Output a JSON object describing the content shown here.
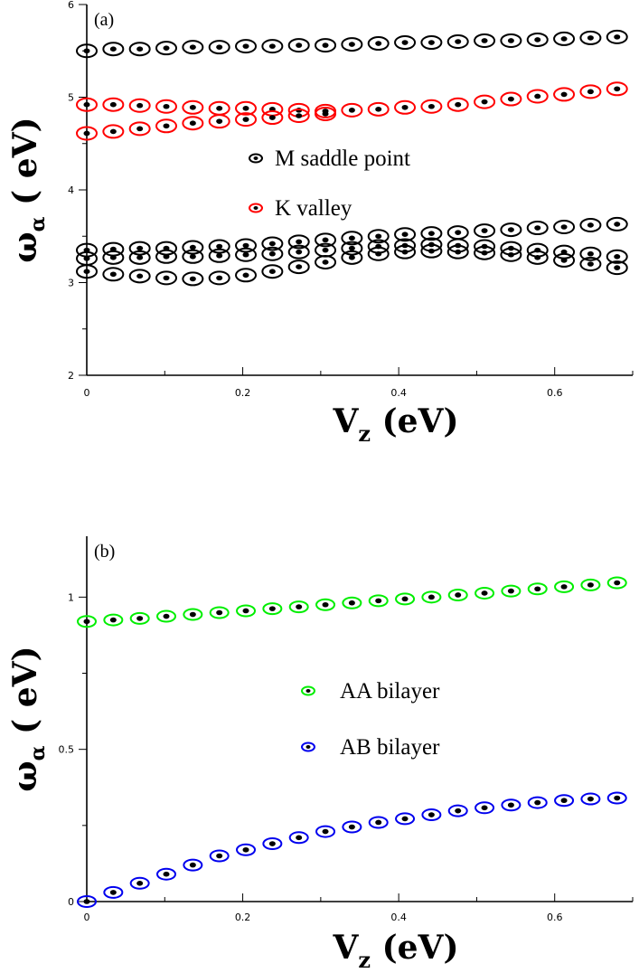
{
  "chart_data": [
    {
      "type": "scatter",
      "panel_label": "(a)",
      "xlabel_main": "V",
      "xlabel_sub": "z",
      "xlabel_unit": " (eV)",
      "ylabel_main": "ω",
      "ylabel_sub": "α",
      "ylabel_unit": " ( eV)",
      "xlim": [
        0,
        0.7
      ],
      "ylim": [
        2,
        6
      ],
      "x_ticks": [
        0,
        0.2,
        0.4,
        0.6
      ],
      "x_tick_labels": [
        "0",
        "0.2",
        "0.4",
        "0.6"
      ],
      "y_ticks": [
        2,
        3,
        4,
        5,
        6
      ],
      "y_tick_labels": [
        "2",
        "3",
        "4",
        "5",
        "6"
      ],
      "legend_placement": "center",
      "series": [
        {
          "name": "M saddle point",
          "color": "#000000",
          "x": [
            0,
            0.034,
            0.068,
            0.102,
            0.136,
            0.17,
            0.204,
            0.238,
            0.272,
            0.306,
            0.34,
            0.374,
            0.408,
            0.442,
            0.476,
            0.51,
            0.544,
            0.578,
            0.612,
            0.646,
            0.68
          ],
          "y": [
            5.5,
            5.52,
            5.52,
            5.53,
            5.54,
            5.54,
            5.55,
            5.55,
            5.56,
            5.56,
            5.57,
            5.58,
            5.59,
            5.59,
            5.6,
            5.61,
            5.61,
            5.62,
            5.63,
            5.64,
            5.65
          ]
        },
        {
          "name": "M saddle point",
          "color": "#000000",
          "x": [
            0,
            0.034,
            0.068,
            0.102,
            0.136,
            0.17,
            0.204,
            0.238,
            0.272,
            0.306,
            0.34,
            0.374,
            0.408,
            0.442,
            0.476,
            0.51,
            0.544,
            0.578,
            0.612,
            0.646,
            0.68
          ],
          "y": [
            3.35,
            3.36,
            3.37,
            3.37,
            3.38,
            3.39,
            3.4,
            3.42,
            3.44,
            3.46,
            3.48,
            3.5,
            3.52,
            3.53,
            3.54,
            3.56,
            3.57,
            3.59,
            3.6,
            3.62,
            3.63
          ]
        },
        {
          "name": "M saddle point",
          "color": "#000000",
          "x": [
            0,
            0.034,
            0.068,
            0.102,
            0.136,
            0.17,
            0.204,
            0.238,
            0.272,
            0.306,
            0.34,
            0.374,
            0.408,
            0.442,
            0.476,
            0.51,
            0.544,
            0.578,
            0.612,
            0.646,
            0.68
          ],
          "y": [
            3.26,
            3.27,
            3.27,
            3.28,
            3.28,
            3.29,
            3.3,
            3.31,
            3.33,
            3.35,
            3.37,
            3.39,
            3.4,
            3.41,
            3.4,
            3.39,
            3.37,
            3.35,
            3.33,
            3.31,
            3.28
          ]
        },
        {
          "name": "M saddle point",
          "color": "#000000",
          "x": [
            0,
            0.034,
            0.068,
            0.102,
            0.136,
            0.17,
            0.204,
            0.238,
            0.272,
            0.306,
            0.34,
            0.374,
            0.408,
            0.442,
            0.476,
            0.51,
            0.544,
            0.578,
            0.612,
            0.646,
            0.68
          ],
          "y": [
            3.12,
            3.09,
            3.07,
            3.05,
            3.04,
            3.05,
            3.08,
            3.12,
            3.17,
            3.22,
            3.27,
            3.31,
            3.33,
            3.34,
            3.33,
            3.32,
            3.3,
            3.27,
            3.24,
            3.2,
            3.16
          ]
        },
        {
          "name": "K valley",
          "color": "#ff0000",
          "x": [
            0,
            0.034,
            0.068,
            0.102,
            0.136,
            0.17,
            0.204,
            0.238,
            0.272,
            0.306,
            0.34,
            0.374,
            0.408,
            0.442,
            0.476,
            0.51,
            0.544,
            0.578,
            0.612,
            0.646,
            0.68
          ],
          "y": [
            4.92,
            4.92,
            4.91,
            4.9,
            4.89,
            4.88,
            4.88,
            4.87,
            4.86,
            4.85,
            4.86,
            4.87,
            4.89,
            4.9,
            4.92,
            4.95,
            4.98,
            5.01,
            5.03,
            5.06,
            5.09
          ]
        },
        {
          "name": "K valley",
          "color": "#ff0000",
          "x": [
            0,
            0.034,
            0.068,
            0.102,
            0.136,
            0.17,
            0.204,
            0.238,
            0.272,
            0.306
          ],
          "y": [
            4.61,
            4.63,
            4.66,
            4.69,
            4.72,
            4.74,
            4.76,
            4.78,
            4.8,
            4.82
          ]
        }
      ],
      "legend": [
        {
          "label": "M saddle point",
          "color": "#000000"
        },
        {
          "label": "K valley",
          "color": "#ff0000"
        }
      ]
    },
    {
      "type": "scatter",
      "panel_label": "(b)",
      "xlabel_main": "V",
      "xlabel_sub": "z",
      "xlabel_unit": " (eV)",
      "ylabel_main": "ω",
      "ylabel_sub": "α",
      "ylabel_unit": " ( eV)",
      "xlim": [
        0,
        0.7
      ],
      "ylim": [
        0,
        1.2
      ],
      "x_ticks": [
        0,
        0.2,
        0.4,
        0.6
      ],
      "x_tick_labels": [
        "0",
        "0.2",
        "0.4",
        "0.6"
      ],
      "y_ticks": [
        0,
        0.5,
        1
      ],
      "y_tick_labels": [
        "0",
        "0.5",
        "1"
      ],
      "legend_placement": "center",
      "series": [
        {
          "name": "AA bilayer",
          "color": "#00ee00",
          "x": [
            0,
            0.034,
            0.068,
            0.102,
            0.136,
            0.17,
            0.204,
            0.238,
            0.272,
            0.306,
            0.34,
            0.374,
            0.408,
            0.442,
            0.476,
            0.51,
            0.544,
            0.578,
            0.612,
            0.646,
            0.68
          ],
          "y": [
            0.92,
            0.925,
            0.93,
            0.937,
            0.943,
            0.949,
            0.955,
            0.962,
            0.968,
            0.975,
            0.981,
            0.988,
            0.994,
            1.0,
            1.007,
            1.013,
            1.02,
            1.027,
            1.034,
            1.04,
            1.047
          ]
        },
        {
          "name": "AB bilayer",
          "color": "#0000ee",
          "x": [
            0,
            0.034,
            0.068,
            0.102,
            0.136,
            0.17,
            0.204,
            0.238,
            0.272,
            0.306,
            0.34,
            0.374,
            0.408,
            0.442,
            0.476,
            0.51,
            0.544,
            0.578,
            0.612,
            0.646,
            0.68
          ],
          "y": [
            0.0,
            0.03,
            0.06,
            0.09,
            0.12,
            0.15,
            0.17,
            0.19,
            0.21,
            0.23,
            0.245,
            0.26,
            0.272,
            0.285,
            0.298,
            0.308,
            0.317,
            0.325,
            0.332,
            0.337,
            0.34
          ]
        }
      ],
      "legend": [
        {
          "label": "AA bilayer",
          "color": "#00ee00"
        },
        {
          "label": "AB bilayer",
          "color": "#0000ee"
        }
      ]
    }
  ]
}
